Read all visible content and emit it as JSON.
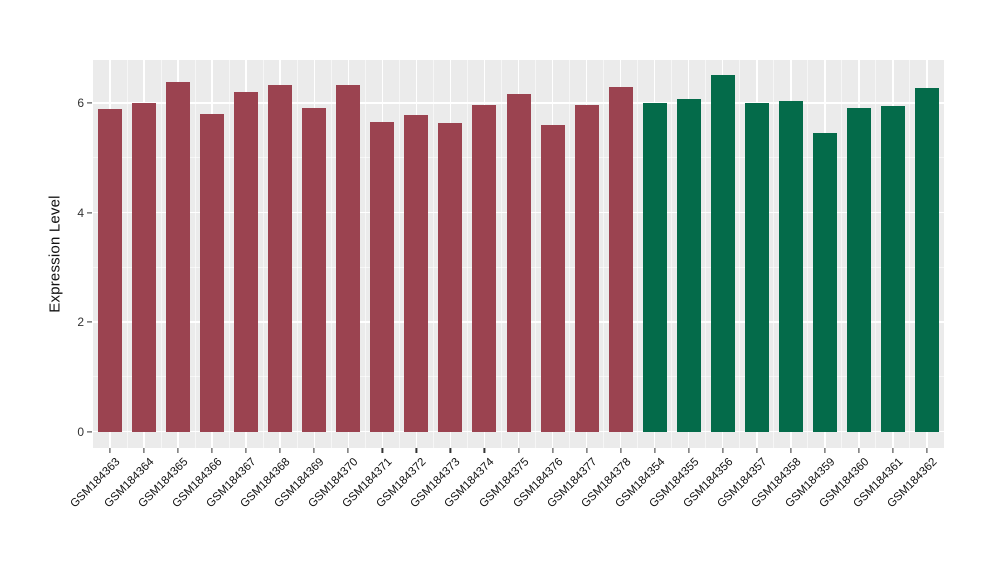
{
  "chart_data": {
    "type": "bar",
    "title": "",
    "xlabel": "",
    "ylabel": "Expression Level",
    "ylim": [
      0,
      6.79
    ],
    "yticks_major": [
      0,
      2,
      4,
      6
    ],
    "ytick_labels": [
      "0",
      "2",
      "4",
      "6"
    ],
    "yticks_minor": [
      1,
      3,
      5
    ],
    "legend_position": "none",
    "grid": "white major and minor gridlines on gray panel",
    "panel_bg": "#EBEBEB",
    "grid_color": "#FFFFFF",
    "categories": [
      "GSM184363",
      "GSM184364",
      "GSM184365",
      "GSM184366",
      "GSM184367",
      "GSM184368",
      "GSM184369",
      "GSM184370",
      "GSM184371",
      "GSM184372",
      "GSM184373",
      "GSM184374",
      "GSM184375",
      "GSM184376",
      "GSM184377",
      "GSM184378",
      "GSM184354",
      "GSM184355",
      "GSM184356",
      "GSM184357",
      "GSM184358",
      "GSM184359",
      "GSM184360",
      "GSM184361",
      "GSM184362"
    ],
    "values": [
      5.9,
      6.0,
      6.38,
      5.81,
      6.21,
      6.34,
      5.92,
      6.33,
      5.66,
      5.79,
      5.64,
      5.97,
      6.16,
      5.6,
      5.97,
      6.3,
      6.0,
      6.08,
      6.52,
      6.0,
      6.04,
      5.46,
      5.91,
      5.94,
      6.27
    ],
    "groups": [
      {
        "name": "samples GSM184363-GSM184378",
        "color": "#9B4350",
        "start": 0,
        "count": 16
      },
      {
        "name": "samples GSM184354-GSM184362",
        "color": "#046B4A",
        "start": 16,
        "count": 9
      }
    ]
  }
}
